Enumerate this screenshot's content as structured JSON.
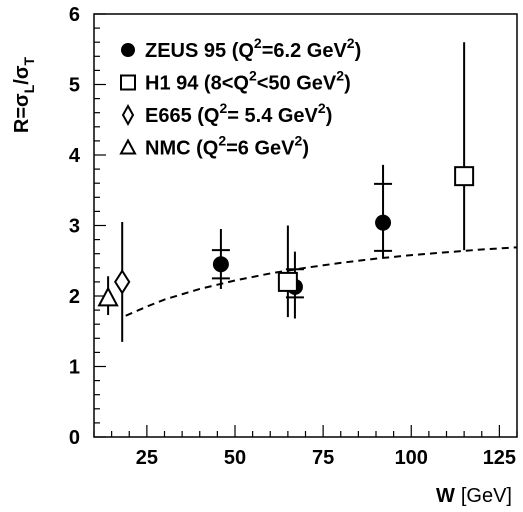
{
  "chart_data": {
    "type": "scatter",
    "title": "",
    "xlabel_main": "W",
    "xlabel_unit": "[GeV]",
    "ylabel_main": "R=σ",
    "ylabel_sub1": "L",
    "ylabel_slash": "/σ",
    "ylabel_sub2": "T",
    "xlim": [
      10,
      130
    ],
    "ylim": [
      0,
      6
    ],
    "xticks": [
      "25",
      "50",
      "75",
      "100",
      "125"
    ],
    "yticks": [
      "0",
      "1",
      "2",
      "3",
      "4",
      "5",
      "6"
    ],
    "grid": false,
    "legend_placement": "top-left",
    "series": [
      {
        "name": "ZEUS 95 (Q²=6.2 GeV²)",
        "legend_parts": [
          "ZEUS 95 (Q",
          "2",
          "=6.2 GeV",
          "2",
          ")"
        ],
        "marker": "filled-circle",
        "points": [
          {
            "x": 46,
            "y": 2.45,
            "err_stat": [
              0.2,
              0.2
            ],
            "err_tot": [
              0.35,
              0.5
            ]
          },
          {
            "x": 67,
            "y": 2.13,
            "err_stat": [
              0.15,
              0.25
            ],
            "err_tot": [
              0.45,
              0.5
            ]
          },
          {
            "x": 92,
            "y": 3.04,
            "err_stat": [
              0.4,
              0.55
            ],
            "err_tot": [
              0.5,
              0.82
            ]
          }
        ]
      },
      {
        "name": "H1 94 (8<Q²<50 GeV²)",
        "legend_parts": [
          "H1 94 (8<Q",
          "2",
          "<50 GeV",
          "2",
          ")"
        ],
        "marker": "open-square",
        "points": [
          {
            "x": 65,
            "y": 2.2,
            "err_stat": null,
            "err_tot": [
              0.5,
              0.8
            ]
          },
          {
            "x": 115,
            "y": 3.7,
            "err_stat": null,
            "err_tot": [
              1.05,
              1.9
            ]
          }
        ]
      },
      {
        "name": "E665 (Q²= 5.4 GeV²)",
        "legend_parts": [
          "E665 (Q",
          "2",
          "= 5.4 GeV",
          "2",
          ")"
        ],
        "marker": "open-diamond",
        "points": [
          {
            "x": 18,
            "y": 2.2,
            "err_stat": null,
            "err_tot": [
              0.85,
              0.85
            ]
          }
        ]
      },
      {
        "name": "NMC (Q²=6 GeV²)",
        "legend_parts": [
          "NMC (Q",
          "2",
          "=6 GeV",
          "2",
          ")"
        ],
        "marker": "open-triangle",
        "points": [
          {
            "x": 14,
            "y": 1.98,
            "err_stat": null,
            "err_tot": [
              0.25,
              0.3
            ]
          }
        ]
      }
    ],
    "curve": {
      "style": "dashed",
      "x": [
        19,
        25,
        30,
        40,
        50,
        60,
        70,
        80,
        90,
        100,
        110,
        120,
        130
      ],
      "y": [
        1.72,
        1.85,
        1.95,
        2.1,
        2.22,
        2.32,
        2.4,
        2.47,
        2.53,
        2.58,
        2.62,
        2.66,
        2.69
      ]
    }
  },
  "colors": {
    "ink": "#000000",
    "background": "#ffffff"
  }
}
